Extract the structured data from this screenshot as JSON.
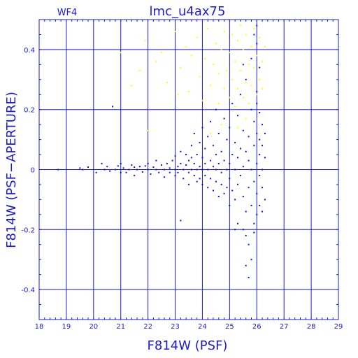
{
  "panel_label": "WF4",
  "chart_data": {
    "type": "scatter",
    "title": "lmc_u4ax75",
    "xlabel": "F814W (PSF)",
    "ylabel": "F814W (PSF−APERTURE)",
    "xlim": [
      18,
      29
    ],
    "ylim": [
      -0.5,
      0.5
    ],
    "x_ticks": [
      18,
      19,
      20,
      21,
      22,
      23,
      24,
      25,
      26,
      27,
      28,
      29
    ],
    "y_ticks": [
      0.4,
      0.2,
      0,
      -0.2,
      -0.4
    ],
    "grid": true,
    "colors": {
      "axes": "#1a1ad8",
      "primary_points": "#1010e0",
      "secondary_points": "#ffff00"
    },
    "series": [
      {
        "color": "#1010e0",
        "points": [
          [
            18.7,
            0.0
          ],
          [
            19.5,
            0.005
          ],
          [
            19.6,
            0.0
          ],
          [
            19.8,
            0.008
          ],
          [
            20.1,
            -0.01
          ],
          [
            20.3,
            0.02
          ],
          [
            20.4,
            0.0
          ],
          [
            20.5,
            0.01
          ],
          [
            20.6,
            -0.005
          ],
          [
            20.7,
            0.21
          ],
          [
            20.8,
            0.0
          ],
          [
            20.9,
            0.012
          ],
          [
            21.0,
            -0.01
          ],
          [
            21.0,
            0.02
          ],
          [
            21.1,
            0.005
          ],
          [
            21.2,
            -0.01
          ],
          [
            21.3,
            0.0
          ],
          [
            21.4,
            0.015
          ],
          [
            21.5,
            0.008
          ],
          [
            21.5,
            -0.02
          ],
          [
            21.6,
            0.0
          ],
          [
            21.7,
            0.01
          ],
          [
            21.8,
            -0.008
          ],
          [
            21.9,
            0.012
          ],
          [
            22.0,
            0.0
          ],
          [
            22.0,
            0.02
          ],
          [
            22.1,
            -0.015
          ],
          [
            22.2,
            0.008
          ],
          [
            22.3,
            0.0
          ],
          [
            22.3,
            0.03
          ],
          [
            22.4,
            -0.01
          ],
          [
            22.5,
            0.015
          ],
          [
            22.6,
            0.0
          ],
          [
            22.6,
            -0.025
          ],
          [
            22.7,
            0.02
          ],
          [
            22.8,
            0.005
          ],
          [
            22.8,
            -0.01
          ],
          [
            22.9,
            0.03
          ],
          [
            23.0,
            0.0
          ],
          [
            23.0,
            -0.02
          ],
          [
            23.0,
            0.045
          ],
          [
            23.1,
            0.01
          ],
          [
            23.1,
            -0.01
          ],
          [
            23.2,
            0.02
          ],
          [
            23.2,
            0.06
          ],
          [
            23.2,
            -0.17
          ],
          [
            23.3,
            0.0
          ],
          [
            23.3,
            -0.03
          ],
          [
            23.4,
            0.015
          ],
          [
            23.4,
            0.05
          ],
          [
            23.5,
            -0.01
          ],
          [
            23.5,
            0.03
          ],
          [
            23.5,
            -0.05
          ],
          [
            23.6,
            0.0
          ],
          [
            23.6,
            0.04
          ],
          [
            23.6,
            0.08
          ],
          [
            23.7,
            -0.02
          ],
          [
            23.7,
            0.02
          ],
          [
            23.7,
            0.12
          ],
          [
            23.8,
            0.0
          ],
          [
            23.8,
            -0.04
          ],
          [
            23.8,
            0.05
          ],
          [
            23.9,
            0.01
          ],
          [
            23.9,
            -0.03
          ],
          [
            23.9,
            0.09
          ],
          [
            24.0,
            0.0
          ],
          [
            24.0,
            0.04
          ],
          [
            24.0,
            -0.05
          ],
          [
            24.0,
            0.14
          ],
          [
            24.1,
            0.02
          ],
          [
            24.1,
            -0.02
          ],
          [
            24.1,
            0.07
          ],
          [
            24.2,
            0.0
          ],
          [
            24.2,
            -0.06
          ],
          [
            24.2,
            0.11
          ],
          [
            24.3,
            0.03
          ],
          [
            24.3,
            -0.03
          ],
          [
            24.3,
            0.16
          ],
          [
            24.4,
            0.01
          ],
          [
            24.4,
            -0.07
          ],
          [
            24.4,
            0.08
          ],
          [
            24.5,
            0.0
          ],
          [
            24.5,
            0.05
          ],
          [
            24.5,
            -0.04
          ],
          [
            24.5,
            0.2
          ],
          [
            24.6,
            0.02
          ],
          [
            24.6,
            -0.09
          ],
          [
            24.6,
            0.12
          ],
          [
            24.7,
            -0.01
          ],
          [
            24.7,
            0.06
          ],
          [
            24.7,
            -0.05
          ],
          [
            24.8,
            0.03
          ],
          [
            24.8,
            -0.08
          ],
          [
            24.8,
            0.17
          ],
          [
            24.9,
            0.0
          ],
          [
            24.9,
            0.1
          ],
          [
            24.9,
            -0.06
          ],
          [
            25.0,
            0.02
          ],
          [
            25.0,
            -0.03
          ],
          [
            25.0,
            0.14
          ],
          [
            25.0,
            -0.12
          ],
          [
            25.1,
            0.05
          ],
          [
            25.1,
            -0.07
          ],
          [
            25.1,
            0.22
          ],
          [
            25.2,
            0.0
          ],
          [
            25.2,
            0.09
          ],
          [
            25.2,
            -0.1
          ],
          [
            25.3,
            0.04
          ],
          [
            25.3,
            -0.05
          ],
          [
            25.3,
            0.18
          ],
          [
            25.3,
            -0.18
          ],
          [
            25.4,
            0.07
          ],
          [
            25.4,
            -0.02
          ],
          [
            25.4,
            0.25
          ],
          [
            25.5,
            0.01
          ],
          [
            25.5,
            -0.09
          ],
          [
            25.5,
            0.13
          ],
          [
            25.5,
            -0.2
          ],
          [
            25.6,
            0.06
          ],
          [
            25.6,
            -0.14
          ],
          [
            25.6,
            0.3
          ],
          [
            25.6,
            -0.22
          ],
          [
            25.7,
            0.03
          ],
          [
            25.7,
            0.11
          ],
          [
            25.7,
            -0.06
          ],
          [
            25.7,
            -0.25
          ],
          [
            25.8,
            0.0
          ],
          [
            25.8,
            0.2
          ],
          [
            25.8,
            -0.12
          ],
          [
            25.8,
            0.37
          ],
          [
            25.8,
            -0.3
          ],
          [
            25.9,
            0.08
          ],
          [
            25.9,
            -0.04
          ],
          [
            25.9,
            0.16
          ],
          [
            25.9,
            -0.18
          ],
          [
            26.0,
            0.02
          ],
          [
            26.0,
            0.12
          ],
          [
            26.0,
            -0.08
          ],
          [
            26.0,
            0.26
          ],
          [
            26.0,
            -0.15
          ],
          [
            26.0,
            0.42
          ],
          [
            26.1,
            0.05
          ],
          [
            26.1,
            0.1
          ],
          [
            26.1,
            -0.02
          ],
          [
            26.1,
            0.19
          ],
          [
            26.1,
            -0.12
          ],
          [
            26.1,
            0.34
          ],
          [
            26.2,
            0.0
          ],
          [
            26.2,
            0.08
          ],
          [
            26.2,
            -0.06
          ],
          [
            26.2,
            0.15
          ],
          [
            26.2,
            -0.14
          ],
          [
            26.3,
            0.04
          ],
          [
            26.3,
            -0.1
          ],
          [
            26.3,
            0.12
          ],
          [
            25.6,
            -0.32
          ],
          [
            25.7,
            -0.36
          ],
          [
            25.2,
            -0.2
          ],
          [
            25.9,
            -0.21
          ],
          [
            26.0,
            0.22
          ],
          [
            25.5,
            0.35
          ],
          [
            25.9,
            0.45
          ],
          [
            26.0,
            0.48
          ]
        ]
      },
      {
        "color": "#ffff00",
        "points": [
          [
            21.4,
            0.28
          ],
          [
            21.7,
            0.33
          ],
          [
            21.9,
            0.43
          ],
          [
            22.3,
            0.36
          ],
          [
            22.5,
            0.39
          ],
          [
            22.7,
            0.29
          ],
          [
            23.0,
            0.46
          ],
          [
            23.1,
            0.25
          ],
          [
            23.2,
            0.34
          ],
          [
            23.4,
            0.41
          ],
          [
            23.5,
            0.26
          ],
          [
            23.6,
            0.38
          ],
          [
            23.8,
            0.44
          ],
          [
            23.9,
            0.31
          ],
          [
            24.0,
            0.23
          ],
          [
            24.1,
            0.37
          ],
          [
            24.2,
            0.47
          ],
          [
            24.3,
            0.28
          ],
          [
            24.4,
            0.35
          ],
          [
            24.5,
            0.42
          ],
          [
            24.6,
            0.22
          ],
          [
            24.6,
            0.32
          ],
          [
            24.7,
            0.4
          ],
          [
            24.8,
            0.27
          ],
          [
            24.8,
            0.46
          ],
          [
            24.9,
            0.33
          ],
          [
            25.0,
            0.24
          ],
          [
            25.0,
            0.39
          ],
          [
            25.1,
            0.3
          ],
          [
            25.1,
            0.45
          ],
          [
            25.2,
            0.21
          ],
          [
            25.2,
            0.36
          ],
          [
            25.3,
            0.27
          ],
          [
            25.3,
            0.43
          ],
          [
            25.4,
            0.33
          ],
          [
            25.4,
            0.48
          ],
          [
            25.5,
            0.24
          ],
          [
            25.5,
            0.4
          ],
          [
            25.6,
            0.29
          ],
          [
            25.6,
            0.45
          ],
          [
            25.7,
            0.35
          ],
          [
            25.7,
            0.22
          ],
          [
            25.8,
            0.41
          ],
          [
            25.8,
            0.28
          ],
          [
            25.9,
            0.34
          ],
          [
            25.9,
            0.47
          ],
          [
            26.0,
            0.25
          ],
          [
            26.0,
            0.38
          ],
          [
            26.1,
            0.3
          ],
          [
            26.1,
            0.44
          ],
          [
            26.2,
            0.27
          ],
          [
            26.2,
            0.36
          ],
          [
            26.3,
            0.41
          ],
          [
            21.0,
            0.39
          ],
          [
            22.0,
            0.13
          ],
          [
            24.3,
            0.12
          ],
          [
            24.7,
            0.15
          ],
          [
            25.3,
            0.14
          ],
          [
            25.6,
            0.17
          ]
        ]
      }
    ]
  }
}
